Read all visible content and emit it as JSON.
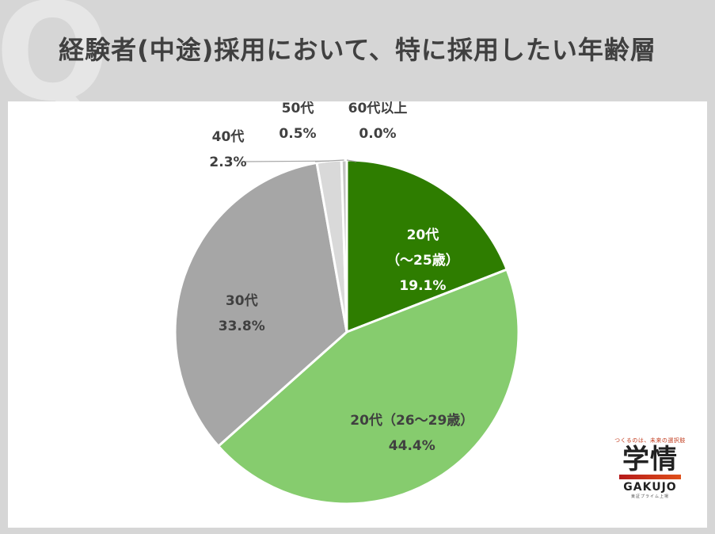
{
  "title": "経験者(中途)採用において、特に採用したい年齢層",
  "chart_data": {
    "type": "pie",
    "title": "経験者(中途)採用において、特に採用したい年齢層",
    "slices": [
      {
        "label": [
          "20代",
          "（～25歳）"
        ],
        "value": 19.1,
        "text": "19.1%",
        "color": "#2e7d00",
        "text_color": "#ffffff"
      },
      {
        "label": [
          "20代（26～29歳）"
        ],
        "value": 44.4,
        "text": "44.4%",
        "color": "#86cc6e",
        "text_color": "#404040"
      },
      {
        "label": [
          "30代"
        ],
        "value": 33.8,
        "text": "33.8%",
        "color": "#a6a6a6",
        "text_color": "#404040"
      },
      {
        "label": [
          "40代"
        ],
        "value": 2.3,
        "text": "2.3%",
        "color": "#d9d9d9",
        "text_color": "#404040"
      },
      {
        "label": [
          "50代"
        ],
        "value": 0.5,
        "text": "0.5%",
        "color": "#c4c4c4",
        "text_color": "#404040"
      },
      {
        "label": [
          "60代以上"
        ],
        "value": 0.0,
        "text": "0.0%",
        "color": "#bdbdbd",
        "text_color": "#404040"
      }
    ]
  },
  "logo": {
    "tagline": "つくるのは、未来の選択肢",
    "mark": "学情",
    "name": "GAKUJO",
    "sub": "東証プライム上場"
  }
}
